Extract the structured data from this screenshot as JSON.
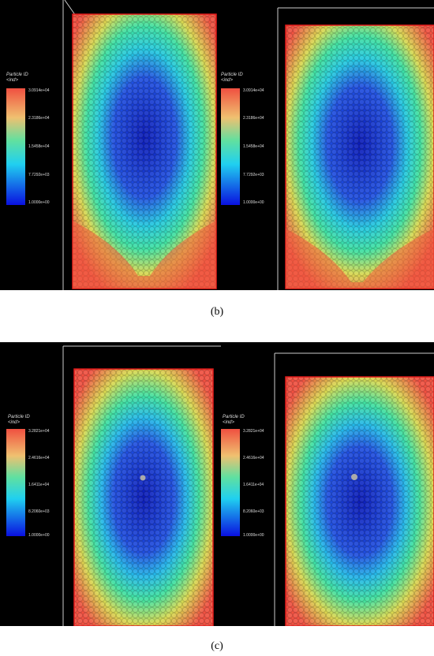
{
  "figure": {
    "caption_b": "(b)",
    "caption_c": "(c)"
  },
  "legend_b": {
    "title_line1": "Particle ID",
    "title_line2": "<ind>",
    "ticks": [
      "3.0914e+04",
      "2.3186e+04",
      "1.5458e+04",
      "7.7292e+03",
      "1.0000e+00"
    ]
  },
  "legend_c": {
    "title_line1": "Particle ID",
    "title_line2": "<ind>",
    "ticks": [
      "3.2821e+04",
      "2.4616e+04",
      "1.6411e+04",
      "8.2060e+03",
      "1.0000e+00"
    ]
  },
  "colors": {
    "background": "#000000",
    "box_outline": "#e31b1b",
    "frame_lines": "#ffffff",
    "low": "#1020d0",
    "high": "#f0503c"
  }
}
